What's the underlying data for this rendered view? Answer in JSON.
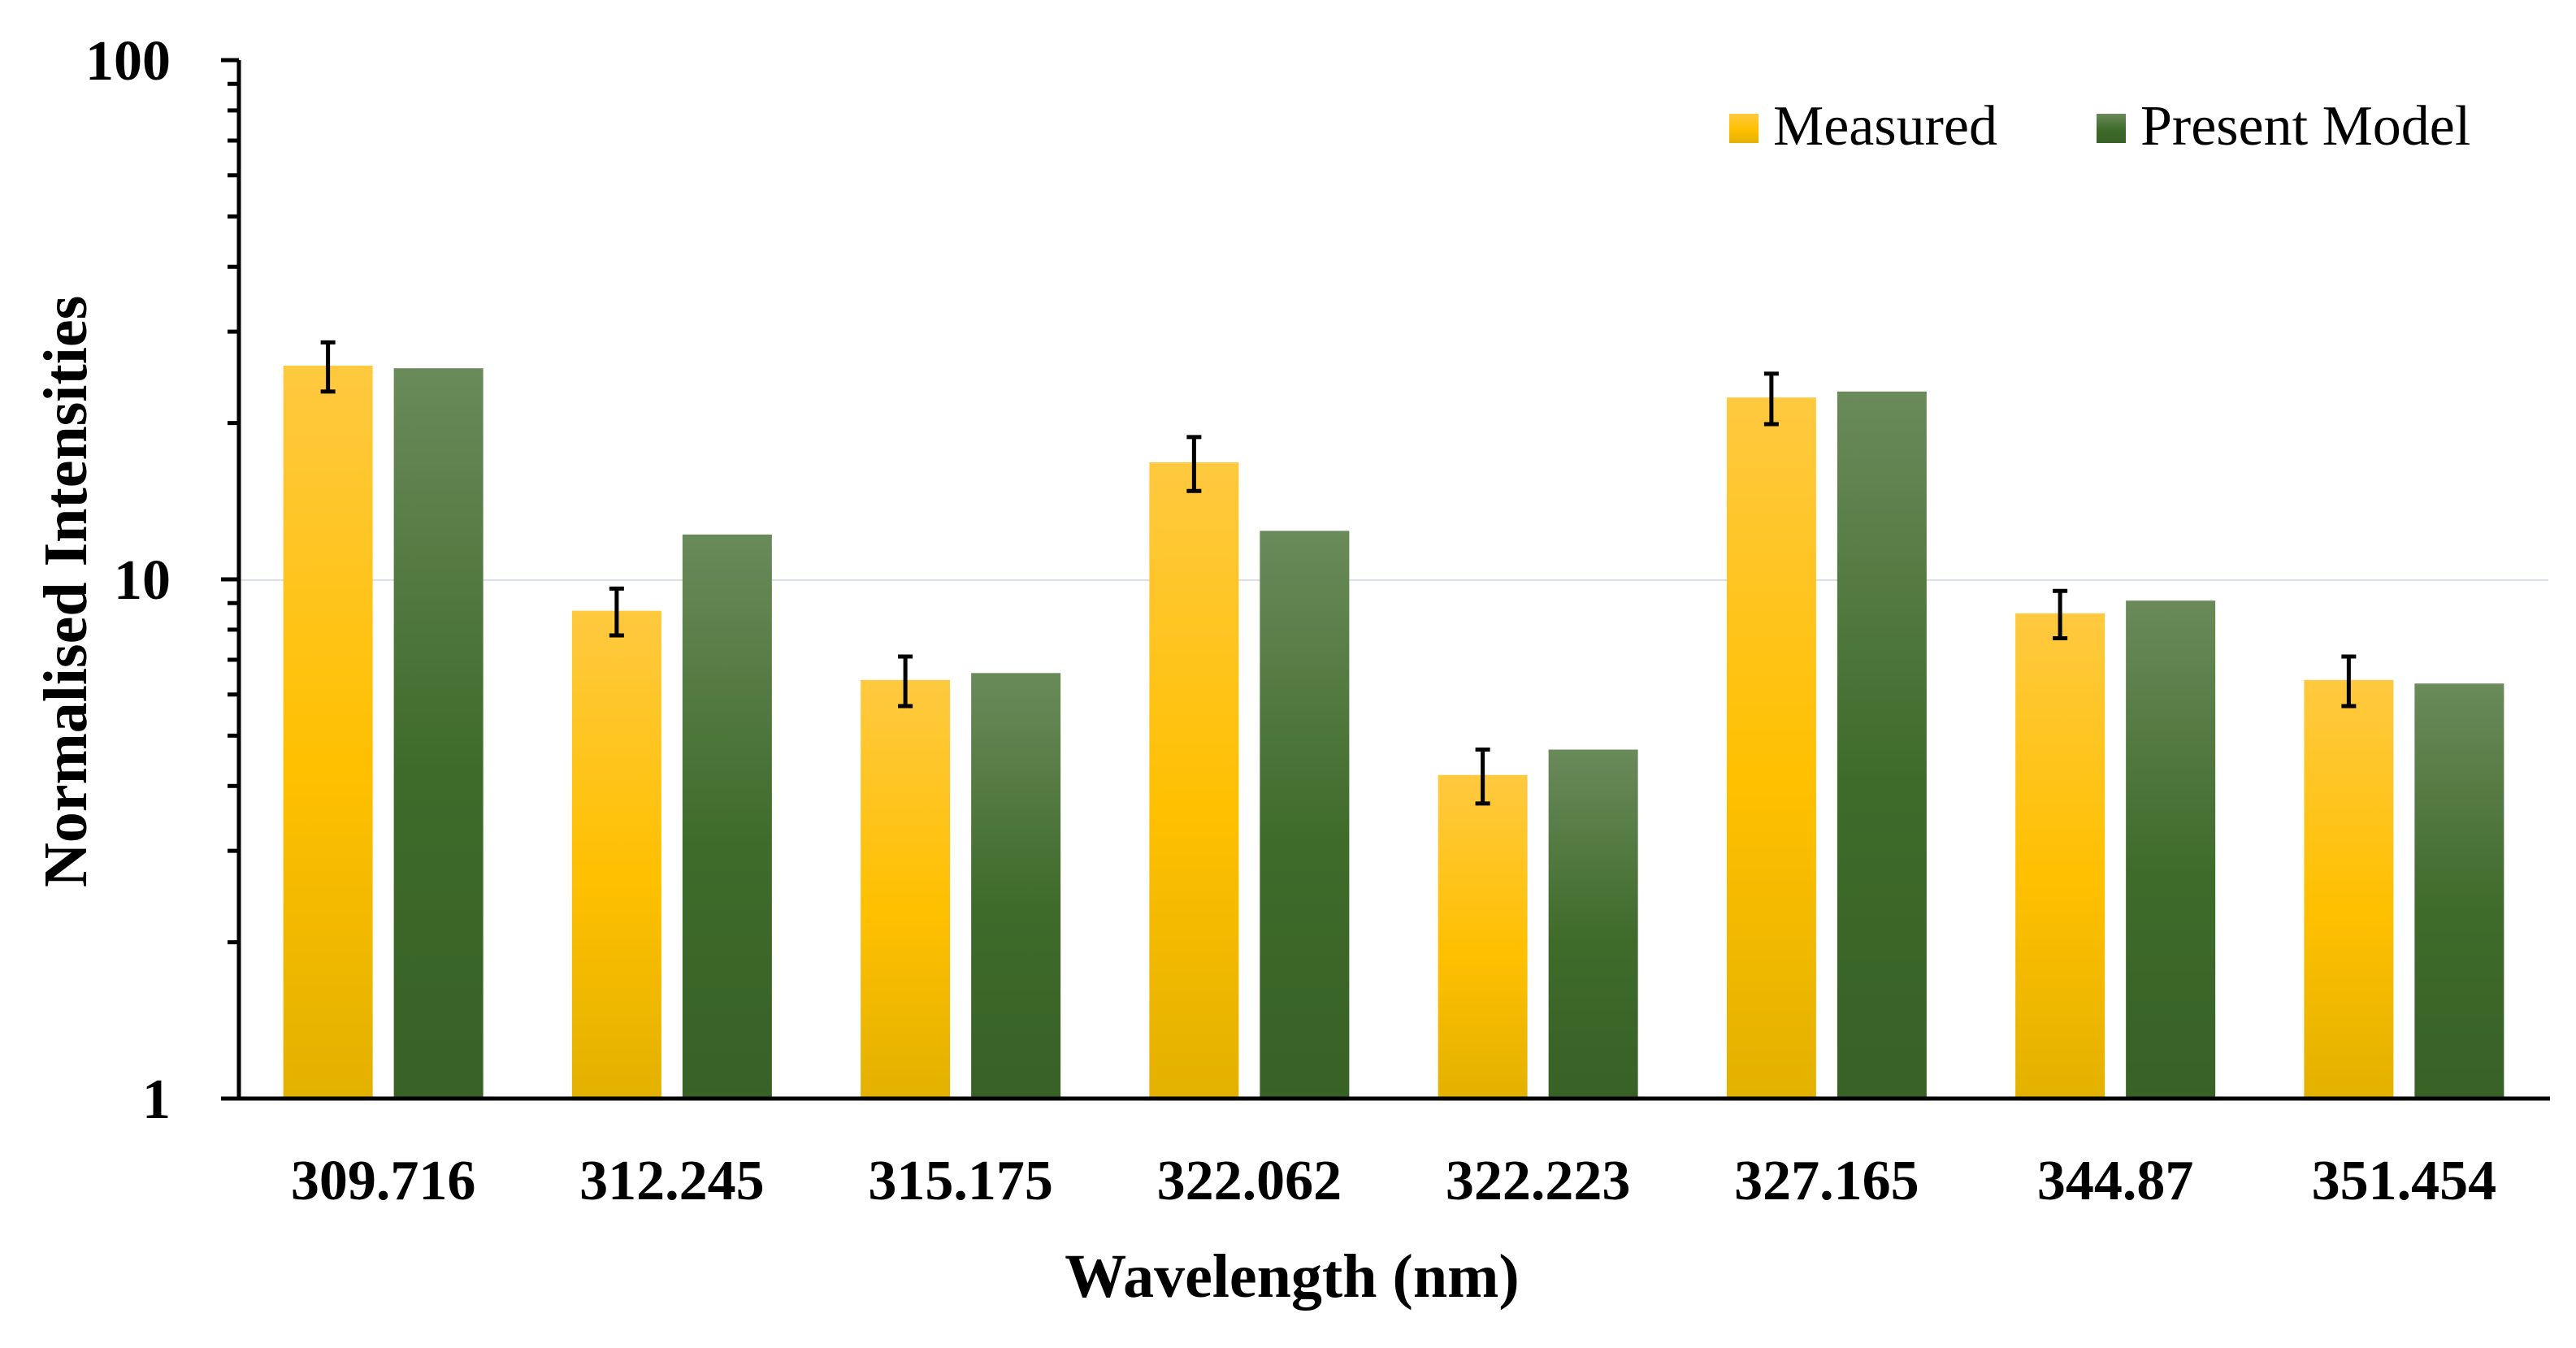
{
  "chart_data": {
    "type": "bar",
    "title": "",
    "xlabel": "Wavelength (nm)",
    "ylabel": "Normalised Intensities",
    "yscale": "log",
    "ylim": [
      1,
      100
    ],
    "yticks": [
      1,
      10,
      100
    ],
    "ytick_labels": [
      "1",
      "10",
      "100"
    ],
    "grid": "horizontal major",
    "legend_position": "top-right",
    "categories": [
      "309.716",
      "312.245",
      "315.175",
      "322.062",
      "322.223",
      "327.165",
      "344.87",
      "351.454"
    ],
    "series": [
      {
        "name": "Measured",
        "color_top": "#FFC940",
        "color_mid": "#FFC000",
        "color_bottom": "#E3B100",
        "values": [
          25.8,
          8.7,
          6.4,
          16.8,
          4.2,
          22.4,
          8.6,
          6.4
        ],
        "error": [
          2.8,
          0.9,
          0.7,
          2.0,
          0.5,
          2.5,
          0.9,
          0.7
        ]
      },
      {
        "name": "Present Model",
        "color_top": "#6A8A5A",
        "color_mid": "#3E6B2A",
        "color_bottom": "#386126",
        "values": [
          25.5,
          12.2,
          6.6,
          12.4,
          4.7,
          23.0,
          9.1,
          6.3
        ]
      }
    ]
  }
}
